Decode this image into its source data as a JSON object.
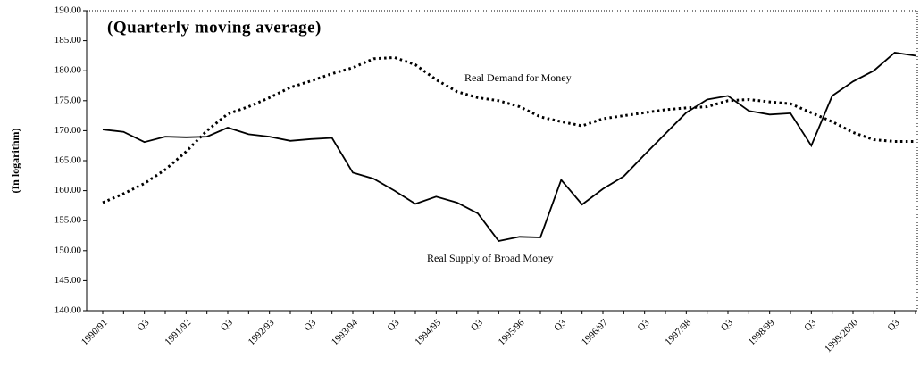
{
  "chart_data": {
    "type": "line",
    "title": "(Quarterly moving average)",
    "y_label": "(In logarithm)",
    "annotations": [
      "Real Demand for Money",
      "Real Supply of Broad Money"
    ],
    "categories": [
      "1990/91",
      null,
      "Q3",
      null,
      "1991/92",
      null,
      "Q3",
      null,
      "1992/93",
      null,
      "Q3",
      null,
      "1993/94",
      null,
      "Q3",
      null,
      "1994/95",
      null,
      "Q3",
      null,
      "1995/96",
      null,
      "Q3",
      null,
      "1996/97",
      null,
      "Q3",
      null,
      "1997/98",
      null,
      "Q3",
      null,
      "1998/99",
      null,
      "Q3",
      null,
      "1999/2000",
      null,
      "Q3",
      null
    ],
    "series": [
      {
        "name": "Real Supply of Broad Money",
        "color": "#000000",
        "dash": "solid",
        "values": [
          170.2,
          169.8,
          168.1,
          169.0,
          168.9,
          169.0,
          170.5,
          169.4,
          169.0,
          168.3,
          168.6,
          168.8,
          163.0,
          162.0,
          160.0,
          157.8,
          159.0,
          158.0,
          156.2,
          151.6,
          152.3,
          152.2,
          161.8,
          157.7,
          160.3,
          162.4,
          166.0,
          169.5,
          173.0,
          175.2,
          175.8,
          173.3,
          172.7,
          172.9,
          167.5,
          175.8,
          178.2,
          180.0,
          183.0,
          182.5
        ]
      },
      {
        "name": "Real Demand for Money",
        "color": "#000000",
        "dash": "dotted",
        "values": [
          158.0,
          159.5,
          161.2,
          163.5,
          166.5,
          170.0,
          172.8,
          174.0,
          175.5,
          177.2,
          178.3,
          179.5,
          180.5,
          182.0,
          182.2,
          181.0,
          178.5,
          176.5,
          175.5,
          175.0,
          174.0,
          172.3,
          171.5,
          170.8,
          172.0,
          172.5,
          173.0,
          173.5,
          173.8,
          174.0,
          175.0,
          175.2,
          174.8,
          174.5,
          173.0,
          171.5,
          169.7,
          168.5,
          168.2,
          168.2
        ]
      }
    ],
    "ylim": [
      140,
      190
    ],
    "yticks": [
      {
        "value": 140,
        "label": "140.00"
      },
      {
        "value": 145,
        "label": "145.00"
      },
      {
        "value": 150,
        "label": "150.00"
      },
      {
        "value": 155,
        "label": "155.00"
      },
      {
        "value": 160,
        "label": "160.00"
      },
      {
        "value": 165,
        "label": "165.00"
      },
      {
        "value": 170,
        "label": "170.00"
      },
      {
        "value": 175,
        "label": "175.00"
      },
      {
        "value": 180,
        "label": "180.00"
      },
      {
        "value": 185,
        "label": "185.00"
      },
      {
        "value": 190,
        "label": "190.00"
      }
    ],
    "grid": false
  }
}
